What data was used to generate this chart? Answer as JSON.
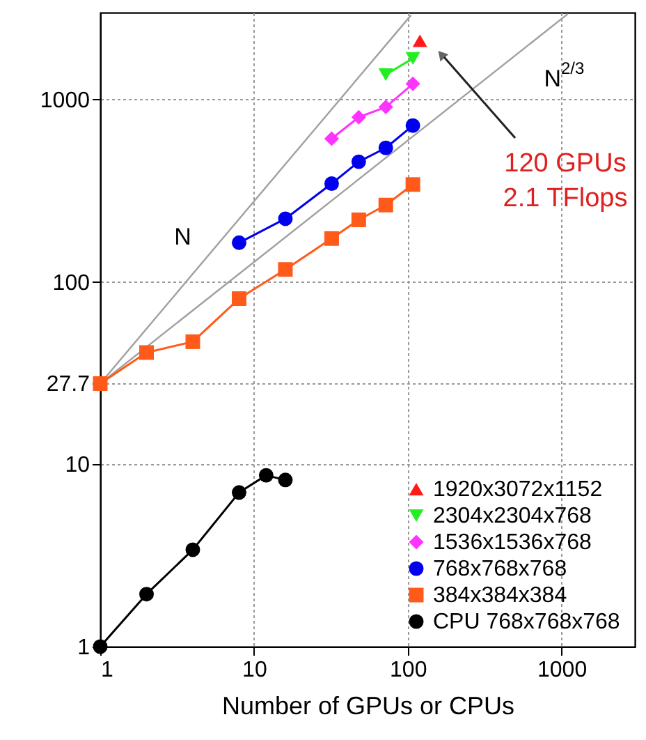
{
  "chart_data": {
    "type": "line",
    "xlabel": "Number of GPUs or CPUs",
    "xlim": [
      1,
      3000
    ],
    "ylim": [
      1,
      3000
    ],
    "xticks": [
      1,
      10,
      100,
      1000
    ],
    "yticks": [
      1,
      10,
      27.7,
      100,
      1000
    ],
    "log": "xy",
    "grid": true,
    "legend": "bottom right",
    "line_style": "solid",
    "series": [
      {
        "name": "1920x3072x1152",
        "color": "#ff1a1a",
        "marker": "triangle",
        "x": [
          120
        ],
        "values": [
          2100
        ]
      },
      {
        "name": "2304x2304x768",
        "color": "#22ee22",
        "marker": "triangle-down",
        "x": [
          72,
          108
        ],
        "values": [
          1370,
          1680
        ]
      },
      {
        "name": "1536x1536x768",
        "color": "#ff33ff",
        "marker": "diamond",
        "x": [
          32,
          48,
          72,
          108
        ],
        "values": [
          610,
          800,
          910,
          1220
        ]
      },
      {
        "name": "768x768x768",
        "color": "#0000ee",
        "marker": "circle",
        "x": [
          8,
          16,
          32,
          48,
          72,
          108
        ],
        "values": [
          164,
          222,
          346,
          456,
          543,
          720
        ]
      },
      {
        "name": "384x384x384",
        "color": "#ff5a1a",
        "marker": "square",
        "x": [
          1,
          2,
          4,
          8,
          16,
          32,
          48,
          72,
          108
        ],
        "values": [
          27.7,
          41,
          47,
          81,
          117,
          173,
          219,
          264,
          342
        ]
      },
      {
        "name": "CPU 768x768x768",
        "color": "#000000",
        "marker": "circle",
        "x": [
          1,
          2,
          4,
          8,
          12,
          16
        ],
        "values": [
          1,
          1.94,
          3.4,
          7,
          8.7,
          8.2
        ]
      },
      {
        "name": "N",
        "color": "#a0a0a0",
        "x": [
          1,
          105
        ],
        "values": [
          27.7,
          2900
        ]
      },
      {
        "name": "N$^{2/3}$",
        "color": "#a0a0a0",
        "x": [
          1,
          1100
        ],
        "values": [
          27.7,
          2950
        ]
      }
    ],
    "annotations": [
      "120 GPUs",
      "2.1 TFlops"
    ]
  }
}
